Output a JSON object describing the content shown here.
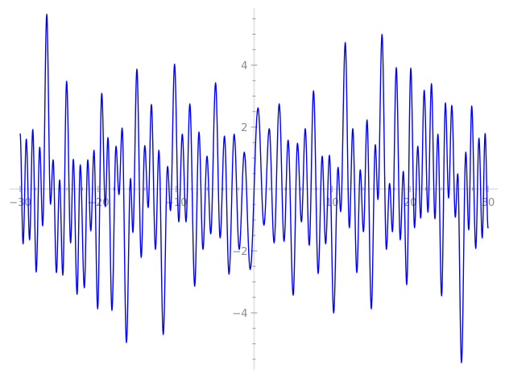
{
  "chart_data": {
    "type": "line",
    "title": "",
    "xlabel": "",
    "ylabel": "",
    "xlim": [
      -30,
      30
    ],
    "ylim": [
      -5.84,
      5.84
    ],
    "grid": false,
    "x_ticks": [
      -30,
      -20,
      -10,
      10,
      20,
      30
    ],
    "x_tick_labels": [
      "−30",
      "−20",
      "−10",
      "10",
      "20",
      "30"
    ],
    "x_minor_step": 2,
    "y_ticks": [
      -4,
      -2,
      2,
      4
    ],
    "y_tick_labels": [
      "−4",
      "−2",
      "2",
      "4"
    ],
    "y_minor_step": 0.5,
    "colors": {
      "line": "#0000ff",
      "axis": "#e6e6e6",
      "tick": "#999999",
      "label": "#8a8a8a"
    },
    "series": [
      {
        "x": [
          -30.0,
          -29.62,
          -29.21,
          -28.79,
          -28.38,
          -27.94,
          -27.49,
          -27.11,
          -26.59,
          -26.11,
          -25.77,
          -25.35,
          -24.94,
          -24.53,
          -24.04,
          -23.53,
          -23.18,
          -22.7,
          -22.29,
          -21.77,
          -21.33,
          -20.94,
          -20.53,
          -20.06,
          -19.54,
          -19.08,
          -18.74,
          -18.23,
          -17.71,
          -17.33,
          -16.92,
          -16.37,
          -15.85,
          -15.54,
          -15.03,
          -14.48,
          -14.02,
          -13.58,
          -13.17,
          -12.65,
          -12.21,
          -11.65,
          -11.1,
          -10.72,
          -10.2,
          -9.66,
          -9.21,
          -8.73,
          -8.24,
          -7.62,
          -7.07,
          -6.56,
          -6.04,
          -5.56,
          -4.94,
          -4.36,
          -3.8,
          -3.22,
          -2.56,
          -1.91,
          -1.26,
          -0.5,
          0.5,
          1.26,
          1.94,
          2.56,
          3.22,
          3.84,
          4.36,
          5.01,
          5.56,
          6.07,
          6.56,
          7.07,
          7.62,
          8.21,
          8.73,
          9.17,
          9.66,
          10.2,
          10.76,
          11.1,
          11.69,
          12.21,
          12.65,
          13.17,
          13.61,
          14.02,
          14.48,
          15.03,
          15.54,
          15.88,
          16.4,
          16.96,
          17.37,
          17.74,
          18.23,
          18.74,
          19.13,
          19.57,
          20.09,
          20.57,
          20.99,
          21.36,
          21.81,
          22.29,
          22.74,
          23.18,
          23.57,
          24.04,
          24.53,
          24.94,
          25.35,
          25.8,
          26.11,
          26.59,
          27.14,
          27.52,
          27.9,
          28.42,
          28.83,
          29.25,
          29.62,
          30.0
        ],
        "y": [
          1.79,
          -1.77,
          1.61,
          -1.64,
          1.92,
          -2.68,
          1.35,
          -1.19,
          5.64,
          -0.49,
          0.94,
          -2.7,
          0.29,
          -2.78,
          3.48,
          -1.74,
          0.96,
          -3.4,
          0.78,
          -3.19,
          0.94,
          -1.35,
          1.25,
          -3.87,
          3.09,
          -0.57,
          1.66,
          -3.92,
          1.38,
          -0.18,
          1.97,
          -4.96,
          0.34,
          -1.4,
          3.87,
          -2.21,
          1.4,
          -0.6,
          2.73,
          -1.95,
          1.25,
          -4.7,
          0.73,
          -0.7,
          4.03,
          -1.06,
          1.77,
          -1.06,
          2.75,
          -3.14,
          1.84,
          -1.95,
          1.06,
          -1.45,
          3.43,
          -1.58,
          1.71,
          -2.75,
          1.77,
          -1.95,
          1.19,
          -2.6,
          2.62,
          -1.17,
          1.95,
          -1.74,
          2.75,
          -1.69,
          1.58,
          -3.43,
          1.48,
          -1.06,
          1.95,
          -1.82,
          3.17,
          -2.73,
          1.06,
          -1.77,
          1.09,
          -4.0,
          0.7,
          -0.73,
          4.73,
          -1.25,
          1.95,
          -2.7,
          0.62,
          -1.38,
          2.23,
          -3.87,
          1.43,
          -0.34,
          4.99,
          -1.95,
          0.18,
          -1.38,
          3.92,
          -1.64,
          0.57,
          -3.09,
          3.9,
          -1.25,
          1.38,
          -0.94,
          3.19,
          -0.75,
          3.4,
          -0.96,
          1.77,
          -3.45,
          2.78,
          -0.29,
          2.7,
          -0.91,
          0.49,
          -5.61,
          1.19,
          -1.32,
          2.68,
          -1.92,
          1.64,
          -1.58,
          1.79,
          -1.27
        ]
      }
    ]
  }
}
